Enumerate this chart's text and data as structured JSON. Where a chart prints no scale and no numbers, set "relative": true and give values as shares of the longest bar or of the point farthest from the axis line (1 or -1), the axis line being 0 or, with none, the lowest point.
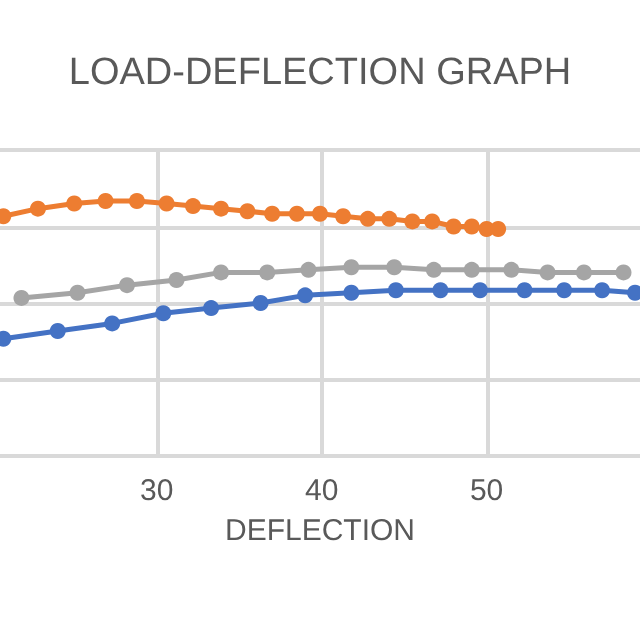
{
  "chart_data": {
    "type": "line",
    "title": "LOAD-DEFLECTION GRAPH",
    "xlabel": "DEFLECTION",
    "relative": true,
    "xlim": [
      20.5,
      59.3
    ],
    "xticks": [
      30,
      40,
      50
    ],
    "tick_labels": "x",
    "grid": true,
    "marker": "circle",
    "line_style": "solid",
    "series": [
      {
        "color": "#ed7d31",
        "x": [
          20.7,
          22.8,
          25.0,
          26.9,
          28.8,
          30.6,
          32.2,
          33.9,
          35.5,
          37.0,
          38.5,
          39.9,
          41.3,
          42.8,
          44.1,
          45.5,
          46.7,
          48.0,
          49.1,
          50.0,
          50.7
        ],
        "values": [
          0.94,
          0.97,
          0.99,
          1,
          1,
          0.99,
          0.98,
          0.97,
          0.96,
          0.95,
          0.95,
          0.95,
          0.94,
          0.93,
          0.93,
          0.92,
          0.92,
          0.9,
          0.9,
          0.89,
          0.89
        ]
      },
      {
        "color": "#a5a5a5",
        "x": [
          21.8,
          25.2,
          28.2,
          31.2,
          33.9,
          36.7,
          39.2,
          41.8,
          44.4,
          46.8,
          49.1,
          51.5,
          53.7,
          55.9,
          58.3
        ],
        "values": [
          0.62,
          0.64,
          0.67,
          0.69,
          0.72,
          0.72,
          0.73,
          0.74,
          0.74,
          0.73,
          0.73,
          0.73,
          0.72,
          0.72,
          0.72
        ]
      },
      {
        "color": "#4472c4",
        "x": [
          20.7,
          24.0,
          27.3,
          30.4,
          33.3,
          36.3,
          39.0,
          41.8,
          44.5,
          47.2,
          49.6,
          52.3,
          54.7,
          57.0,
          59.0
        ],
        "values": [
          0.46,
          0.49,
          0.52,
          0.56,
          0.58,
          0.6,
          0.63,
          0.64,
          0.65,
          0.65,
          0.65,
          0.65,
          0.65,
          0.65,
          0.64
        ]
      }
    ]
  }
}
